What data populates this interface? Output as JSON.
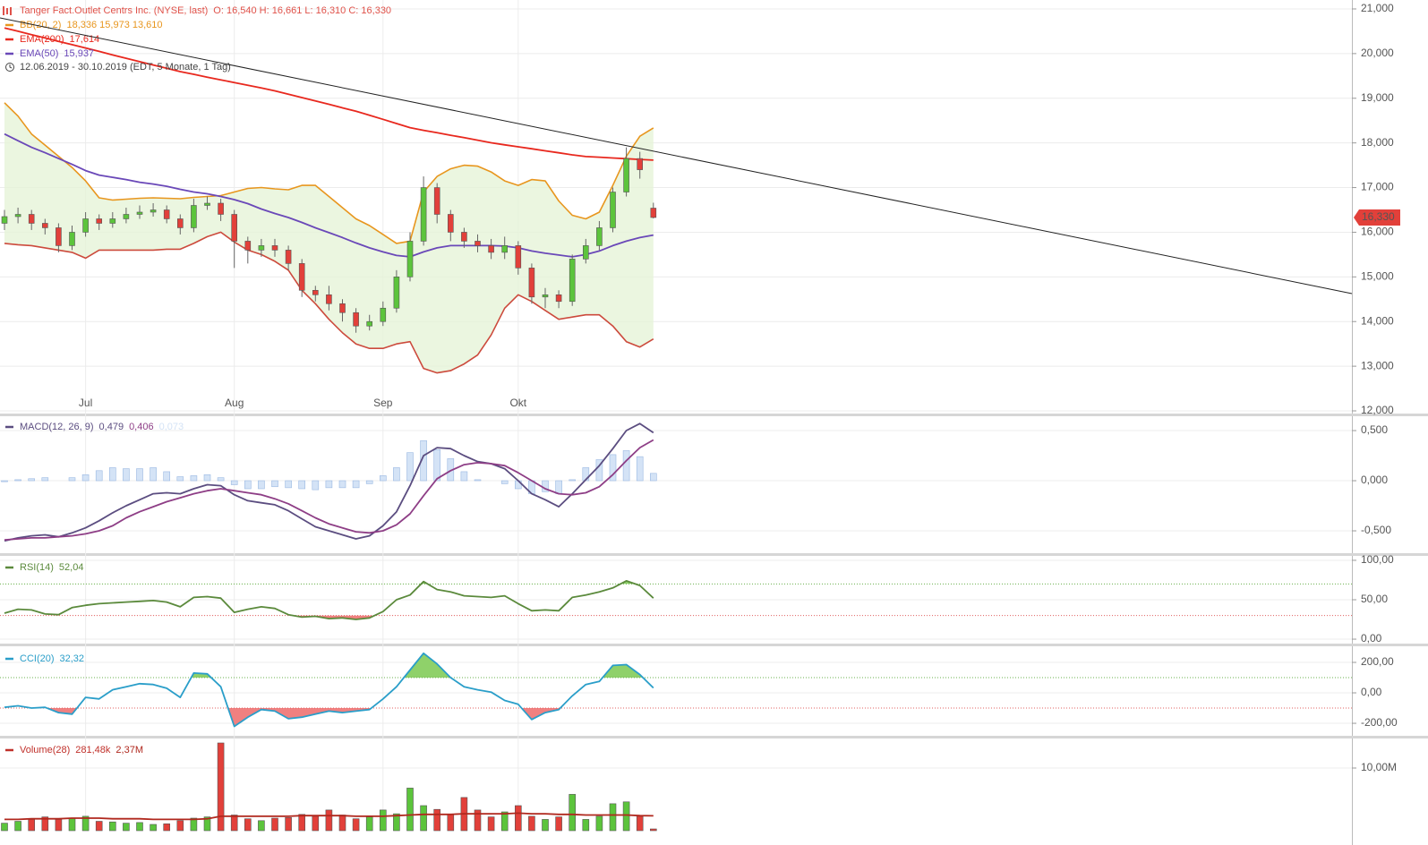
{
  "chart_data": [
    {
      "type": "candlestick",
      "title": "Tanger Fact.Outlet Centrs Inc. (NYSE, last)",
      "ohlc_label": "O: 16,540  H: 16,661  L: 16,310  C: 16,330",
      "subtitle": "12.06.2019 - 30.10.2019    (EDT, 5 Monate, 1 Tag)",
      "categories": [
        null,
        null,
        null,
        null,
        null,
        null,
        "Jul",
        null,
        null,
        null,
        null,
        null,
        null,
        null,
        null,
        null,
        null,
        "Aug",
        null,
        null,
        null,
        null,
        null,
        null,
        null,
        null,
        null,
        null,
        "Sep",
        null,
        null,
        null,
        null,
        null,
        null,
        null,
        null,
        null,
        "Okt",
        null,
        null,
        null,
        null,
        null,
        null,
        null,
        null,
        null,
        null
      ],
      "open": [
        16200,
        16350,
        16400,
        16200,
        16100,
        15700,
        16000,
        16300,
        16200,
        16300,
        16400,
        16450,
        16500,
        16300,
        16100,
        16600,
        16650,
        16400,
        15800,
        15600,
        15700,
        15600,
        15300,
        14700,
        14600,
        14400,
        14200,
        13900,
        14000,
        14300,
        15000,
        15800,
        17000,
        16400,
        16000,
        15800,
        15700,
        15550,
        15700,
        15200,
        14550,
        14600,
        14450,
        15400,
        15700,
        16100,
        16900,
        17650,
        16540
      ],
      "high": [
        16500,
        16550,
        16500,
        16300,
        16200,
        16150,
        16450,
        16400,
        16450,
        16550,
        16600,
        16650,
        16600,
        16400,
        16750,
        16800,
        16750,
        16500,
        15900,
        15850,
        15850,
        15700,
        15400,
        14800,
        14800,
        14500,
        14300,
        14150,
        14450,
        15150,
        16000,
        17250,
        17100,
        16500,
        16100,
        15950,
        15850,
        15900,
        15800,
        15300,
        14750,
        14700,
        15500,
        15850,
        16250,
        17000,
        17900,
        17800,
        16661
      ],
      "low": [
        16050,
        16200,
        16050,
        15950,
        15550,
        15600,
        15900,
        16050,
        16100,
        16200,
        16300,
        16350,
        16200,
        15950,
        16000,
        16500,
        16250,
        15200,
        15300,
        15450,
        15450,
        15150,
        14550,
        14450,
        14250,
        14000,
        13750,
        13800,
        13900,
        14200,
        14900,
        15700,
        16200,
        15800,
        15650,
        15550,
        15400,
        15400,
        15050,
        14400,
        14300,
        14300,
        14350,
        15300,
        15600,
        16000,
        16800,
        17200,
        16310
      ],
      "close": [
        16350,
        16400,
        16200,
        16100,
        15700,
        16000,
        16300,
        16200,
        16300,
        16400,
        16450,
        16500,
        16300,
        16100,
        16600,
        16650,
        16400,
        15800,
        15600,
        15700,
        15600,
        15300,
        14700,
        14600,
        14400,
        14200,
        13900,
        14000,
        14300,
        15000,
        15800,
        17000,
        16400,
        16000,
        15800,
        15700,
        15550,
        15700,
        15200,
        14550,
        14600,
        14450,
        15400,
        15700,
        16100,
        16900,
        17650,
        17400,
        16330
      ],
      "up_color": "#5cc43c",
      "down_color": "#e2403a",
      "series": [
        {
          "name": "BB(20, 2)",
          "value_label": "18,336  15,973  13,610",
          "color": "#e8961e",
          "lower_color": "#cc4a3c",
          "fill": "#e6f4d8",
          "upper": [
            18900,
            18600,
            18200,
            17950,
            17700,
            17450,
            17150,
            16770,
            16720,
            16740,
            16760,
            16770,
            16760,
            16750,
            16780,
            16800,
            16820,
            16900,
            16980,
            17000,
            16970,
            16950,
            17050,
            17050,
            16800,
            16550,
            16300,
            16150,
            15950,
            15750,
            15800,
            16900,
            17250,
            17420,
            17500,
            17480,
            17350,
            17150,
            17050,
            17180,
            17150,
            16700,
            16380,
            16300,
            16450,
            17050,
            17700,
            18150,
            18336
          ],
          "lower": [
            15750,
            15720,
            15700,
            15650,
            15600,
            15550,
            15420,
            15600,
            15600,
            15600,
            15600,
            15600,
            15620,
            15620,
            15750,
            15900,
            16000,
            15780,
            15600,
            15500,
            15350,
            15150,
            14700,
            14400,
            14050,
            13750,
            13500,
            13400,
            13400,
            13500,
            13550,
            12950,
            12850,
            12900,
            13050,
            13250,
            13700,
            14300,
            14600,
            14450,
            14250,
            14050,
            14100,
            14150,
            14150,
            13900,
            13550,
            13430,
            13610
          ]
        },
        {
          "name": "EMA(200)",
          "value_label": "17,614",
          "color": "#e8281e",
          "values": [
            20575,
            20500,
            20425,
            20350,
            20275,
            20200,
            20125,
            20050,
            19970,
            19895,
            19820,
            19745,
            19670,
            19596,
            19536,
            19472,
            19412,
            19352,
            19292,
            19232,
            19165,
            19090,
            19015,
            18940,
            18865,
            18785,
            18710,
            18620,
            18528,
            18435,
            18342,
            18282,
            18227,
            18172,
            18117,
            18062,
            18004,
            17958,
            17913,
            17868,
            17823,
            17778,
            17733,
            17695,
            17680,
            17663,
            17646,
            17630,
            17614
          ]
        },
        {
          "name": "EMA(50)",
          "value_label": "15,937",
          "color": "#6a48b8",
          "values": [
            18200,
            18050,
            17900,
            17780,
            17650,
            17520,
            17380,
            17280,
            17230,
            17180,
            17120,
            17080,
            17030,
            16960,
            16900,
            16860,
            16800,
            16730,
            16640,
            16520,
            16420,
            16330,
            16220,
            16100,
            15990,
            15880,
            15760,
            15650,
            15560,
            15480,
            15450,
            15560,
            15650,
            15700,
            15700,
            15700,
            15700,
            15690,
            15650,
            15580,
            15530,
            15490,
            15450,
            15500,
            15580,
            15700,
            15800,
            15880,
            15937
          ]
        }
      ],
      "price_marker": {
        "value": 16330,
        "label": "16,330",
        "color": "#e2403a"
      },
      "ylim": [
        11920,
        21200
      ],
      "yticks": [
        {
          "value": 21000,
          "label": "21,000"
        },
        {
          "value": 20000,
          "label": "20,000"
        },
        {
          "value": 19000,
          "label": "19,000"
        },
        {
          "value": 18000,
          "label": "18,000"
        },
        {
          "value": 17000,
          "label": "17,000"
        },
        {
          "value": 16000,
          "label": "16,000"
        },
        {
          "value": 15000,
          "label": "15,000"
        },
        {
          "value": 14000,
          "label": "14,000"
        },
        {
          "value": 13000,
          "label": "13,000"
        },
        {
          "value": 12000,
          "label": "12,000"
        }
      ],
      "grid": true
    },
    {
      "type": "line",
      "label": "MACD(12, 26, 9)",
      "label_color": "#5b4d80",
      "series": [
        {
          "style": "line",
          "color": "#5b4d80",
          "value_label": "0,479",
          "values": [
            -0.6,
            -0.57,
            -0.55,
            -0.54,
            -0.56,
            -0.52,
            -0.47,
            -0.4,
            -0.32,
            -0.25,
            -0.19,
            -0.13,
            -0.12,
            -0.13,
            -0.08,
            -0.04,
            -0.05,
            -0.14,
            -0.2,
            -0.22,
            -0.24,
            -0.3,
            -0.38,
            -0.46,
            -0.5,
            -0.54,
            -0.58,
            -0.55,
            -0.45,
            -0.31,
            -0.05,
            0.25,
            0.33,
            0.32,
            0.25,
            0.19,
            0.17,
            0.12,
            0.0,
            -0.13,
            -0.19,
            -0.26,
            -0.13,
            0.01,
            0.15,
            0.32,
            0.5,
            0.57,
            0.479
          ]
        },
        {
          "style": "line",
          "color": "#8e3e86",
          "value_label": "0,406",
          "values": [
            -0.59,
            -0.58,
            -0.57,
            -0.57,
            -0.56,
            -0.55,
            -0.53,
            -0.5,
            -0.45,
            -0.37,
            -0.31,
            -0.26,
            -0.21,
            -0.17,
            -0.13,
            -0.1,
            -0.08,
            -0.1,
            -0.12,
            -0.14,
            -0.18,
            -0.23,
            -0.3,
            -0.37,
            -0.43,
            -0.47,
            -0.51,
            -0.52,
            -0.5,
            -0.44,
            -0.33,
            -0.15,
            0.02,
            0.1,
            0.16,
            0.18,
            0.17,
            0.15,
            0.08,
            0.0,
            -0.08,
            -0.13,
            -0.14,
            -0.12,
            -0.06,
            0.06,
            0.2,
            0.33,
            0.406
          ]
        },
        {
          "style": "bar",
          "color": "#d4e3f6",
          "edge_color": "#9ab8e2",
          "value_label": "0,073",
          "values": [
            -0.01,
            0.01,
            0.02,
            0.03,
            0.0,
            0.03,
            0.06,
            0.1,
            0.13,
            0.12,
            0.12,
            0.13,
            0.09,
            0.04,
            0.05,
            0.06,
            0.03,
            -0.04,
            -0.08,
            -0.08,
            -0.06,
            -0.07,
            -0.08,
            -0.09,
            -0.07,
            -0.07,
            -0.07,
            -0.03,
            0.05,
            0.13,
            0.28,
            0.4,
            0.31,
            0.22,
            0.09,
            0.01,
            0.0,
            -0.03,
            -0.08,
            -0.13,
            -0.11,
            -0.13,
            0.01,
            0.13,
            0.21,
            0.26,
            0.3,
            0.24,
            0.073
          ]
        }
      ],
      "ylim": [
        -0.723,
        0.643
      ],
      "yticks": [
        {
          "value": 0.5,
          "label": "0,500"
        },
        {
          "value": 0,
          "label": "0,000"
        },
        {
          "value": -0.5,
          "label": "-0,500"
        }
      ],
      "grid": true
    },
    {
      "type": "line",
      "label": "RSI(14)",
      "label_color": "#5b8a3c",
      "levels": [
        70,
        30
      ],
      "level_colors": [
        "#6ab04c",
        "#e06060"
      ],
      "level_fills": [
        "#8fd16a",
        "#f08080"
      ],
      "series": [
        {
          "style": "line",
          "color": "#5b8a3c",
          "value_label": "52,04",
          "values": [
            33,
            38,
            37,
            32,
            31,
            40,
            43,
            45,
            46,
            47,
            48,
            49,
            47,
            41,
            53,
            54,
            52,
            34,
            38,
            41,
            39,
            31,
            28,
            29,
            26,
            27,
            25,
            27,
            35,
            50,
            56,
            73,
            63,
            60,
            55,
            54,
            53,
            55,
            45,
            36,
            37,
            36,
            53,
            56,
            60,
            65,
            74,
            68,
            52.04
          ]
        }
      ],
      "ylim": [
        -4.5,
        104.5
      ],
      "yticks": [
        {
          "value": 100,
          "label": "100,00"
        },
        {
          "value": 50,
          "label": "50,00"
        },
        {
          "value": 0,
          "label": "0,00"
        }
      ],
      "grid": true
    },
    {
      "type": "line",
      "label": "CCI(20)",
      "label_color": "#2a9ec9",
      "levels": [
        100,
        -100
      ],
      "level_colors": [
        "#6ab04c",
        "#e06060"
      ],
      "level_fills": [
        "#8fd16a",
        "#f08080"
      ],
      "series": [
        {
          "style": "line",
          "color": "#2a9ec9",
          "value_label": "32,32",
          "values": [
            -95,
            -85,
            -100,
            -95,
            -130,
            -140,
            -30,
            -40,
            20,
            40,
            60,
            55,
            30,
            -30,
            130,
            125,
            40,
            -220,
            -160,
            -110,
            -120,
            -170,
            -160,
            -140,
            -120,
            -130,
            -120,
            -110,
            -40,
            40,
            150,
            260,
            190,
            100,
            40,
            20,
            5,
            -50,
            -75,
            -175,
            -130,
            -110,
            -20,
            55,
            75,
            180,
            185,
            120,
            32.32
          ]
        }
      ],
      "ylim": [
        -282,
        294
      ],
      "yticks": [
        {
          "value": 200,
          "label": "200,00"
        },
        {
          "value": 0,
          "label": "0,00"
        },
        {
          "value": -200,
          "label": "-200,00"
        }
      ],
      "grid": true
    },
    {
      "type": "bar",
      "label": "Volume(28)",
      "label_color": "#c0302a",
      "up_color": "#5cc43c",
      "down_color": "#e2403a",
      "series": [
        {
          "style": "bar",
          "color": "#c0302a",
          "value_label": "281,48k",
          "values": [
            1.2,
            1.5,
            1.8,
            2.2,
            1.8,
            2.0,
            2.3,
            1.5,
            1.4,
            1.2,
            1.3,
            1.0,
            1.1,
            1.6,
            2.0,
            2.2,
            14.0,
            2.5,
            1.9,
            1.6,
            2.0,
            2.1,
            2.6,
            2.3,
            3.3,
            2.5,
            1.9,
            2.2,
            3.3,
            2.7,
            6.8,
            4.0,
            3.4,
            2.6,
            5.3,
            3.3,
            2.2,
            3.0,
            4.0,
            2.3,
            1.8,
            2.2,
            5.8,
            1.8,
            2.3,
            4.3,
            4.6,
            2.3,
            0.28148
          ]
        },
        {
          "style": "line",
          "color": "#b0281e",
          "value_label": "2,37M",
          "values": [
            1.8,
            1.8,
            1.9,
            1.9,
            1.9,
            2.0,
            2.0,
            2.0,
            1.9,
            1.9,
            1.9,
            1.8,
            1.8,
            1.8,
            1.8,
            1.9,
            2.3,
            2.3,
            2.3,
            2.3,
            2.3,
            2.3,
            2.4,
            2.4,
            2.4,
            2.4,
            2.3,
            2.3,
            2.3,
            2.4,
            2.5,
            2.6,
            2.6,
            2.6,
            2.7,
            2.7,
            2.7,
            2.7,
            2.8,
            2.7,
            2.7,
            2.6,
            2.6,
            2.5,
            2.5,
            2.5,
            2.5,
            2.4,
            2.37
          ]
        }
      ],
      "ylim": [
        0,
        14.57
      ],
      "yticks": [
        {
          "value": 10,
          "label": "10,00M"
        }
      ],
      "grid": true
    }
  ]
}
